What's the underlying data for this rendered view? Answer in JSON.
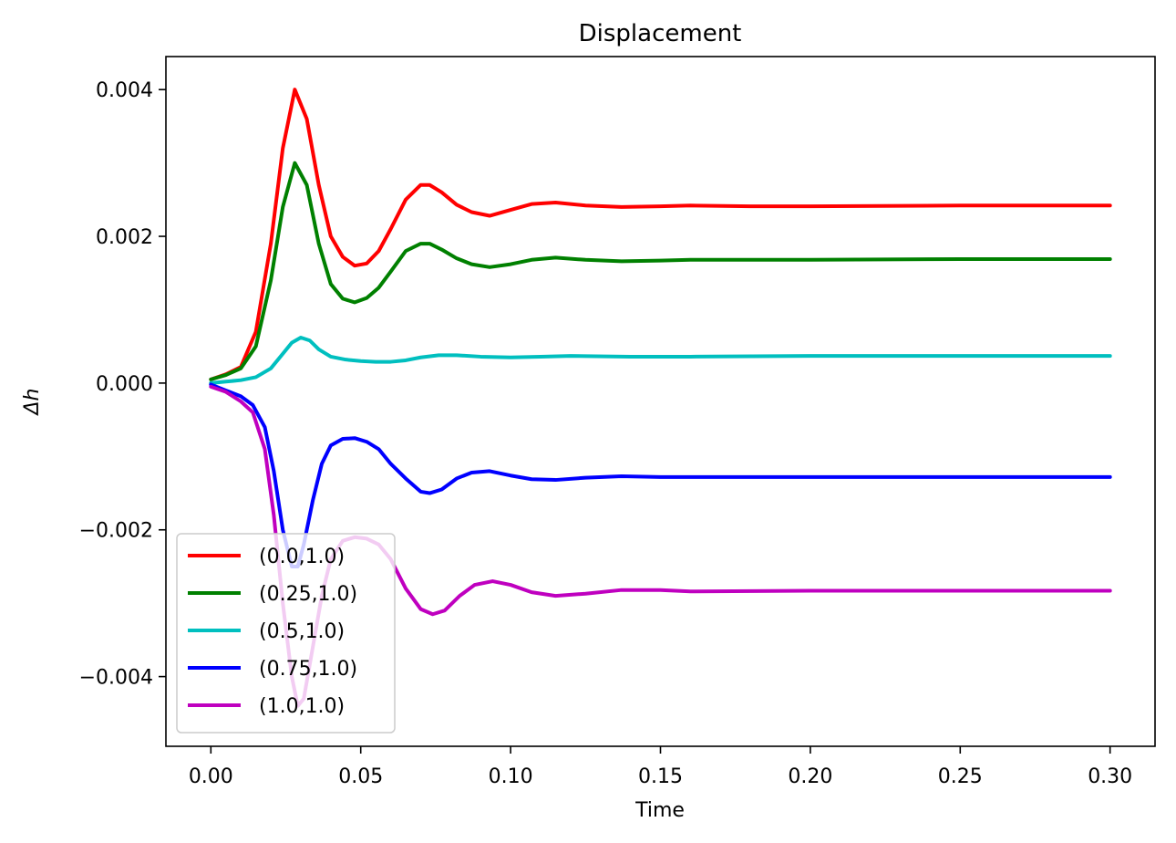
{
  "chart_data": {
    "type": "line",
    "title": "Displacement",
    "xlabel": "Time",
    "ylabel": "Δh",
    "xlim": [
      -0.015,
      0.315
    ],
    "ylim": [
      -0.00495,
      0.00445
    ],
    "xticks": [
      0.0,
      0.05,
      0.1,
      0.15,
      0.2,
      0.25,
      0.3
    ],
    "xtick_labels": [
      "0.00",
      "0.05",
      "0.10",
      "0.15",
      "0.20",
      "0.25",
      "0.30"
    ],
    "yticks": [
      -0.004,
      -0.002,
      0.0,
      0.002,
      0.004
    ],
    "ytick_labels": [
      "−0.004",
      "−0.002",
      "0.000",
      "0.002",
      "0.004"
    ],
    "grid": false,
    "legend_position": "lower-left",
    "series": [
      {
        "name": "(0.0,1.0)",
        "color": "#ff0000",
        "x": [
          0.0,
          0.005,
          0.01,
          0.015,
          0.02,
          0.024,
          0.028,
          0.032,
          0.036,
          0.04,
          0.044,
          0.048,
          0.052,
          0.056,
          0.06,
          0.065,
          0.07,
          0.073,
          0.077,
          0.082,
          0.087,
          0.093,
          0.1,
          0.107,
          0.115,
          0.125,
          0.137,
          0.15,
          0.16,
          0.18,
          0.2,
          0.25,
          0.3
        ],
        "y": [
          5e-05,
          0.00012,
          0.00022,
          0.0007,
          0.0019,
          0.0032,
          0.004,
          0.0036,
          0.0027,
          0.002,
          0.00172,
          0.0016,
          0.00163,
          0.0018,
          0.0021,
          0.0025,
          0.0027,
          0.0027,
          0.0026,
          0.00243,
          0.00233,
          0.00228,
          0.00236,
          0.00244,
          0.00246,
          0.00242,
          0.0024,
          0.00241,
          0.00242,
          0.00241,
          0.00241,
          0.00242,
          0.00242
        ]
      },
      {
        "name": "(0.25,1.0)",
        "color": "#008000",
        "x": [
          0.0,
          0.005,
          0.01,
          0.015,
          0.02,
          0.024,
          0.028,
          0.032,
          0.036,
          0.04,
          0.044,
          0.048,
          0.052,
          0.056,
          0.06,
          0.065,
          0.07,
          0.073,
          0.077,
          0.082,
          0.087,
          0.093,
          0.1,
          0.107,
          0.115,
          0.125,
          0.137,
          0.15,
          0.16,
          0.18,
          0.2,
          0.25,
          0.3
        ],
        "y": [
          5e-05,
          0.00011,
          0.0002,
          0.0005,
          0.0014,
          0.0024,
          0.003,
          0.0027,
          0.0019,
          0.00135,
          0.00115,
          0.0011,
          0.00116,
          0.0013,
          0.00152,
          0.0018,
          0.0019,
          0.0019,
          0.00182,
          0.0017,
          0.00162,
          0.00158,
          0.00162,
          0.00168,
          0.00171,
          0.00168,
          0.00166,
          0.00167,
          0.00168,
          0.00168,
          0.00168,
          0.00169,
          0.00169
        ]
      },
      {
        "name": "(0.5,1.0)",
        "color": "#00bfbf",
        "x": [
          0.0,
          0.005,
          0.01,
          0.015,
          0.02,
          0.024,
          0.027,
          0.03,
          0.033,
          0.036,
          0.04,
          0.045,
          0.05,
          0.055,
          0.06,
          0.065,
          0.07,
          0.076,
          0.082,
          0.09,
          0.1,
          0.11,
          0.12,
          0.14,
          0.16,
          0.2,
          0.25,
          0.3
        ],
        "y": [
          0.0,
          2e-05,
          4e-05,
          8e-05,
          0.0002,
          0.0004,
          0.00055,
          0.00062,
          0.00058,
          0.00046,
          0.00036,
          0.00032,
          0.0003,
          0.00029,
          0.00029,
          0.00031,
          0.00035,
          0.00038,
          0.00038,
          0.00036,
          0.00035,
          0.00036,
          0.00037,
          0.00036,
          0.00036,
          0.00037,
          0.00037,
          0.00037
        ]
      },
      {
        "name": "(0.75,1.0)",
        "color": "#0000ff",
        "x": [
          0.0,
          0.005,
          0.01,
          0.014,
          0.018,
          0.021,
          0.024,
          0.027,
          0.029,
          0.031,
          0.034,
          0.037,
          0.04,
          0.044,
          0.048,
          0.052,
          0.056,
          0.06,
          0.065,
          0.07,
          0.073,
          0.077,
          0.082,
          0.087,
          0.093,
          0.1,
          0.107,
          0.115,
          0.125,
          0.137,
          0.15,
          0.16,
          0.2,
          0.25,
          0.3
        ],
        "y": [
          -2e-05,
          -0.0001,
          -0.00018,
          -0.0003,
          -0.0006,
          -0.0012,
          -0.002,
          -0.0025,
          -0.0025,
          -0.0022,
          -0.0016,
          -0.0011,
          -0.00085,
          -0.00076,
          -0.00075,
          -0.0008,
          -0.0009,
          -0.0011,
          -0.0013,
          -0.00148,
          -0.0015,
          -0.00145,
          -0.0013,
          -0.00122,
          -0.0012,
          -0.00126,
          -0.00131,
          -0.00132,
          -0.00129,
          -0.00127,
          -0.00128,
          -0.00128,
          -0.00128,
          -0.00128,
          -0.00128
        ]
      },
      {
        "name": "(1.0,1.0)",
        "color": "#bf00bf",
        "x": [
          0.0,
          0.005,
          0.01,
          0.014,
          0.018,
          0.021,
          0.024,
          0.027,
          0.029,
          0.031,
          0.034,
          0.037,
          0.04,
          0.044,
          0.048,
          0.052,
          0.056,
          0.06,
          0.065,
          0.07,
          0.074,
          0.078,
          0.083,
          0.088,
          0.094,
          0.1,
          0.107,
          0.115,
          0.125,
          0.137,
          0.15,
          0.16,
          0.2,
          0.25,
          0.3
        ],
        "y": [
          -5e-05,
          -0.00012,
          -0.00025,
          -0.0004,
          -0.0009,
          -0.0018,
          -0.003,
          -0.004,
          -0.0044,
          -0.0043,
          -0.0036,
          -0.0029,
          -0.0024,
          -0.00215,
          -0.0021,
          -0.00212,
          -0.0022,
          -0.0024,
          -0.0028,
          -0.00308,
          -0.00315,
          -0.0031,
          -0.0029,
          -0.00275,
          -0.0027,
          -0.00275,
          -0.00285,
          -0.0029,
          -0.00287,
          -0.00282,
          -0.00282,
          -0.00284,
          -0.00283,
          -0.00283,
          -0.00283
        ]
      }
    ]
  }
}
